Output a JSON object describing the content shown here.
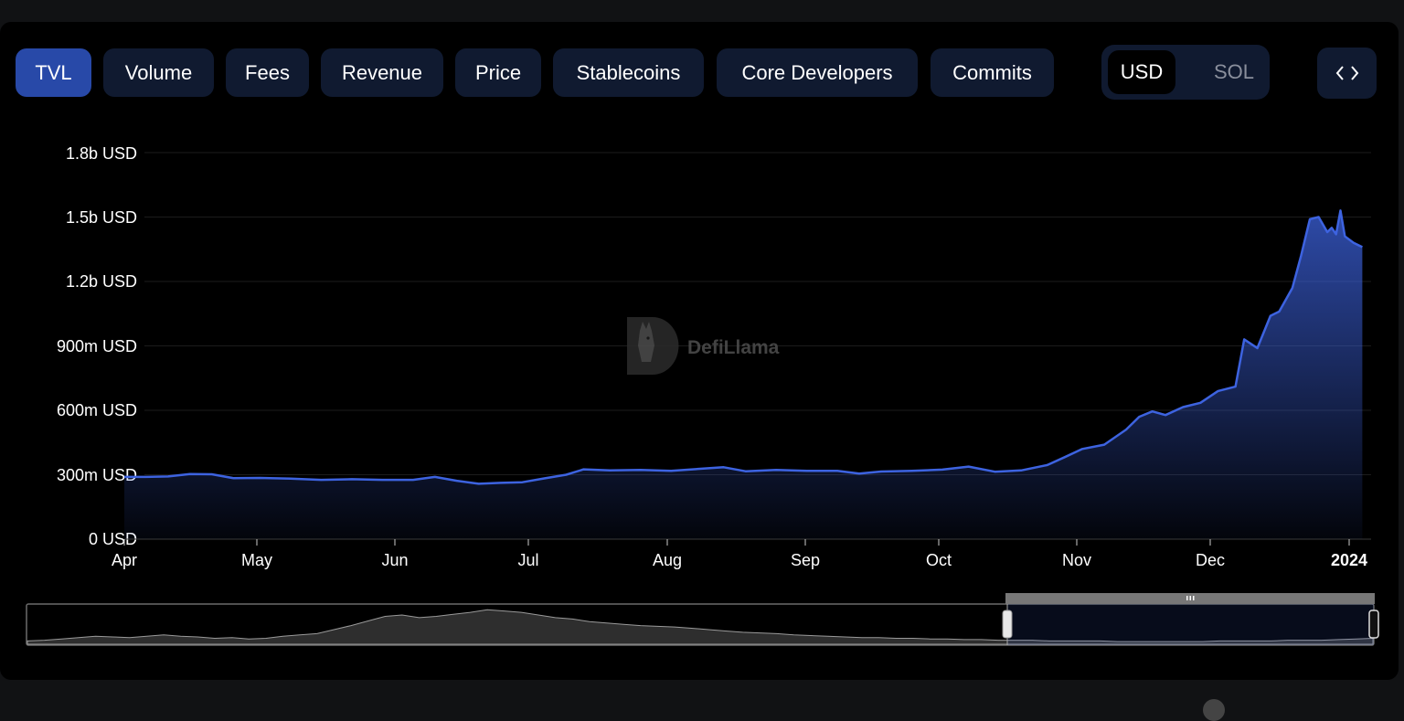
{
  "tabs": [
    {
      "label": "TVL",
      "active": true
    },
    {
      "label": "Volume",
      "active": false
    },
    {
      "label": "Fees",
      "active": false
    },
    {
      "label": "Revenue",
      "active": false
    },
    {
      "label": "Price",
      "active": false
    },
    {
      "label": "Stablecoins",
      "active": false
    },
    {
      "label": "Core Developers",
      "active": false
    },
    {
      "label": "Commits",
      "active": false
    }
  ],
  "currency_toggle": {
    "options": [
      "USD",
      "SOL"
    ],
    "selected": "USD"
  },
  "embed_icon": "code-brackets-icon",
  "watermark": {
    "text": "DefiLlama",
    "icon": "llama-logo-icon"
  },
  "colors": {
    "accent": "#2849a8",
    "line": "#3d63e0",
    "tab_bg": "#101a30",
    "brush_line": "#9a9a9a"
  },
  "chart_data": {
    "type": "area",
    "x_tick_labels": [
      "Apr",
      "May",
      "Jun",
      "Jul",
      "Aug",
      "Sep",
      "Oct",
      "Nov",
      "Dec",
      "2024"
    ],
    "y_tick_labels": [
      "0 USD",
      "300m USD",
      "600m USD",
      "900m USD",
      "1.2b USD",
      "1.5b USD",
      "1.8b USD"
    ],
    "ylim": [
      0,
      1800000000
    ],
    "xlim": [
      "2023-03-31",
      "2024-01-10"
    ],
    "grid": true,
    "series": [
      {
        "points": [
          [
            "2023-03-31",
            290000000
          ],
          [
            "2023-04-05",
            290000000
          ],
          [
            "2023-04-10",
            292000000
          ],
          [
            "2023-04-15",
            303000000
          ],
          [
            "2023-04-20",
            302000000
          ],
          [
            "2023-04-25",
            284000000
          ],
          [
            "2023-05-01",
            285000000
          ],
          [
            "2023-05-08",
            282000000
          ],
          [
            "2023-05-15",
            276000000
          ],
          [
            "2023-05-22",
            279000000
          ],
          [
            "2023-05-29",
            276000000
          ],
          [
            "2023-06-05",
            276000000
          ],
          [
            "2023-06-10",
            290000000
          ],
          [
            "2023-06-15",
            272000000
          ],
          [
            "2023-06-20",
            258000000
          ],
          [
            "2023-06-25",
            262000000
          ],
          [
            "2023-06-30",
            265000000
          ],
          [
            "2023-07-05",
            283000000
          ],
          [
            "2023-07-10",
            300000000
          ],
          [
            "2023-07-14",
            325000000
          ],
          [
            "2023-07-20",
            320000000
          ],
          [
            "2023-07-27",
            322000000
          ],
          [
            "2023-08-03",
            318000000
          ],
          [
            "2023-08-10",
            328000000
          ],
          [
            "2023-08-15",
            335000000
          ],
          [
            "2023-08-20",
            316000000
          ],
          [
            "2023-08-27",
            322000000
          ],
          [
            "2023-09-03",
            318000000
          ],
          [
            "2023-09-10",
            318000000
          ],
          [
            "2023-09-15",
            305000000
          ],
          [
            "2023-09-20",
            315000000
          ],
          [
            "2023-09-27",
            318000000
          ],
          [
            "2023-10-04",
            324000000
          ],
          [
            "2023-10-10",
            338000000
          ],
          [
            "2023-10-16",
            314000000
          ],
          [
            "2023-10-22",
            320000000
          ],
          [
            "2023-10-28",
            345000000
          ],
          [
            "2023-11-01",
            382000000
          ],
          [
            "2023-11-05",
            420000000
          ],
          [
            "2023-11-10",
            440000000
          ],
          [
            "2023-11-15",
            510000000
          ],
          [
            "2023-11-18",
            570000000
          ],
          [
            "2023-11-21",
            595000000
          ],
          [
            "2023-11-24",
            578000000
          ],
          [
            "2023-11-28",
            615000000
          ],
          [
            "2023-12-02",
            635000000
          ],
          [
            "2023-12-06",
            690000000
          ],
          [
            "2023-12-10",
            710000000
          ],
          [
            "2023-12-12",
            930000000
          ],
          [
            "2023-12-15",
            890000000
          ],
          [
            "2023-12-18",
            1040000000
          ],
          [
            "2023-12-20",
            1060000000
          ],
          [
            "2023-12-23",
            1170000000
          ],
          [
            "2023-12-25",
            1320000000
          ],
          [
            "2023-12-27",
            1490000000
          ],
          [
            "2023-12-29",
            1500000000
          ],
          [
            "2023-12-31",
            1430000000
          ],
          [
            "2024-01-01",
            1450000000
          ],
          [
            "2024-01-02",
            1420000000
          ],
          [
            "2024-01-03",
            1530000000
          ],
          [
            "2024-01-04",
            1410000000
          ],
          [
            "2024-01-06",
            1380000000
          ],
          [
            "2024-01-08",
            1360000000
          ]
        ]
      }
    ],
    "overview": {
      "selected_range": [
        "2023-03-31",
        "2024-01-10"
      ],
      "values": [
        5,
        6,
        8,
        10,
        12,
        11,
        10,
        12,
        14,
        12,
        11,
        9,
        10,
        8,
        9,
        12,
        14,
        16,
        22,
        28,
        35,
        42,
        44,
        40,
        42,
        45,
        48,
        52,
        50,
        48,
        44,
        40,
        38,
        34,
        32,
        30,
        28,
        27,
        26,
        24,
        22,
        20,
        18,
        17,
        16,
        14,
        13,
        12,
        11,
        10,
        10,
        9,
        9,
        8,
        8,
        7,
        7,
        6,
        6,
        6,
        5,
        5,
        5,
        5,
        4,
        4,
        4,
        4,
        4,
        4,
        5,
        5,
        5,
        5,
        6,
        6,
        6,
        7,
        8,
        9
      ]
    }
  }
}
